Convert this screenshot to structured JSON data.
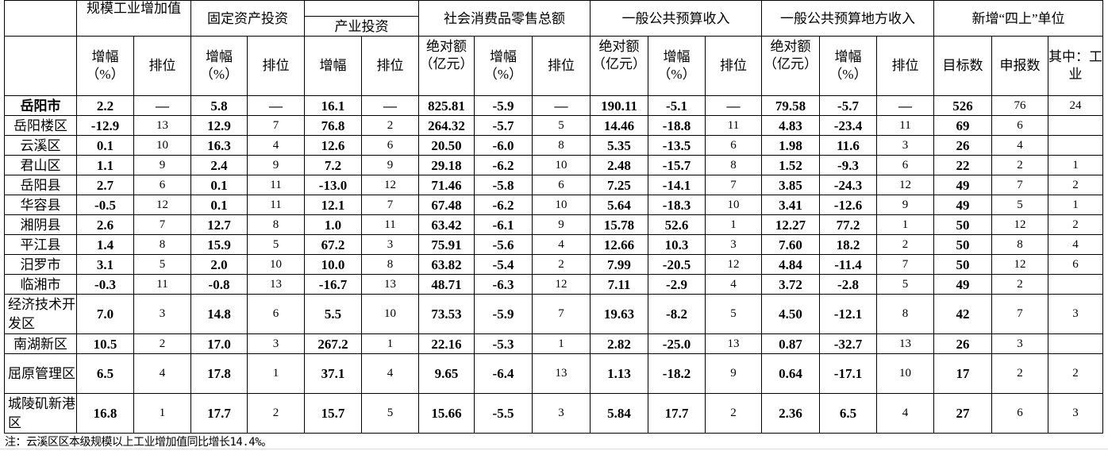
{
  "header": {
    "groups": [
      "规模工业增加值",
      "固定资产投资",
      "产业投资",
      "社会消费品零售总额",
      "一般公共预算收入",
      "一般公共预算地方收入",
      "新增“四上”单位"
    ],
    "sub": [
      "增幅（%）",
      "排位",
      "增幅（%）",
      "排位",
      "增幅",
      "排位",
      "绝对额（亿元）",
      "增幅（%）",
      "排位",
      "绝对额（亿元）",
      "增幅（%）",
      "排位",
      "绝对额（亿元）",
      "增幅（%）",
      "排位",
      "目标数",
      "申报数",
      "其中：工业"
    ]
  },
  "rows": [
    {
      "name": "岳阳市",
      "values": [
        "2.2",
        "—",
        "5.8",
        "—",
        "16.1",
        "—",
        "825.81",
        "-5.9",
        "—",
        "190.11",
        "-5.1",
        "—",
        "79.58",
        "-5.7",
        "—",
        "526",
        "76",
        "24"
      ]
    },
    {
      "name": "岳阳楼区",
      "values": [
        "-12.9",
        "13",
        "12.9",
        "7",
        "76.8",
        "2",
        "264.32",
        "-5.7",
        "5",
        "14.46",
        "-18.8",
        "11",
        "4.83",
        "-23.4",
        "11",
        "69",
        "6",
        ""
      ]
    },
    {
      "name": "云溪区",
      "values": [
        "0.1",
        "10",
        "16.3",
        "4",
        "12.6",
        "6",
        "20.50",
        "-6.0",
        "8",
        "5.35",
        "-13.5",
        "6",
        "1.98",
        "11.6",
        "3",
        "26",
        "4",
        ""
      ]
    },
    {
      "name": "君山区",
      "values": [
        "1.1",
        "9",
        "2.4",
        "9",
        "7.2",
        "9",
        "29.18",
        "-6.2",
        "10",
        "2.48",
        "-15.7",
        "8",
        "1.52",
        "-9.3",
        "6",
        "22",
        "2",
        "1"
      ]
    },
    {
      "name": "岳阳县",
      "values": [
        "2.7",
        "6",
        "0.1",
        "11",
        "-13.0",
        "12",
        "71.46",
        "-5.8",
        "6",
        "7.25",
        "-14.1",
        "7",
        "3.85",
        "-24.3",
        "12",
        "49",
        "7",
        "2"
      ]
    },
    {
      "name": "华容县",
      "values": [
        "-0.5",
        "12",
        "0.1",
        "11",
        "12.1",
        "7",
        "67.48",
        "-6.2",
        "10",
        "5.64",
        "-18.3",
        "10",
        "3.41",
        "-12.6",
        "9",
        "49",
        "5",
        "1"
      ]
    },
    {
      "name": "湘阴县",
      "values": [
        "2.6",
        "7",
        "12.7",
        "8",
        "1.0",
        "11",
        "63.42",
        "-6.1",
        "9",
        "15.78",
        "52.6",
        "1",
        "12.27",
        "77.2",
        "1",
        "50",
        "12",
        "2"
      ]
    },
    {
      "name": "平江县",
      "values": [
        "1.4",
        "8",
        "15.9",
        "5",
        "67.2",
        "3",
        "75.91",
        "-5.6",
        "4",
        "12.66",
        "10.3",
        "3",
        "7.60",
        "18.2",
        "2",
        "50",
        "8",
        "4"
      ]
    },
    {
      "name": "汨罗市",
      "values": [
        "3.1",
        "5",
        "2.0",
        "10",
        "10.0",
        "8",
        "63.82",
        "-5.4",
        "2",
        "7.99",
        "-20.5",
        "12",
        "4.84",
        "-11.4",
        "7",
        "50",
        "12",
        "6"
      ]
    },
    {
      "name": "临湘市",
      "values": [
        "-0.3",
        "11",
        "-0.8",
        "13",
        "-16.7",
        "13",
        "48.71",
        "-6.3",
        "12",
        "7.11",
        "-2.9",
        "4",
        "3.72",
        "-2.8",
        "5",
        "49",
        "2",
        ""
      ]
    },
    {
      "name": "经济技术开发区",
      "values": [
        "7.0",
        "3",
        "14.8",
        "6",
        "5.5",
        "10",
        "73.53",
        "-5.9",
        "7",
        "19.63",
        "-8.2",
        "5",
        "4.50",
        "-12.1",
        "8",
        "42",
        "7",
        "3"
      ]
    },
    {
      "name": "南湖新区",
      "values": [
        "10.5",
        "2",
        "17.0",
        "3",
        "267.2",
        "1",
        "22.16",
        "-5.3",
        "1",
        "2.82",
        "-25.0",
        "13",
        "0.87",
        "-32.7",
        "13",
        "26",
        "3",
        ""
      ]
    },
    {
      "name": "屈原管理区",
      "values": [
        "6.5",
        "4",
        "17.8",
        "1",
        "37.1",
        "4",
        "9.65",
        "-6.4",
        "13",
        "1.13",
        "-18.2",
        "9",
        "0.64",
        "-17.1",
        "10",
        "17",
        "2",
        "2"
      ]
    },
    {
      "name": "城陵矶新港区",
      "values": [
        "16.8",
        "1",
        "17.7",
        "2",
        "15.7",
        "5",
        "15.66",
        "-5.5",
        "3",
        "5.84",
        "17.7",
        "2",
        "2.36",
        "6.5",
        "4",
        "27",
        "6",
        "3"
      ]
    }
  ],
  "note": "注：云溪区区本级规模以上工业增加值同比增长14.4%。"
}
